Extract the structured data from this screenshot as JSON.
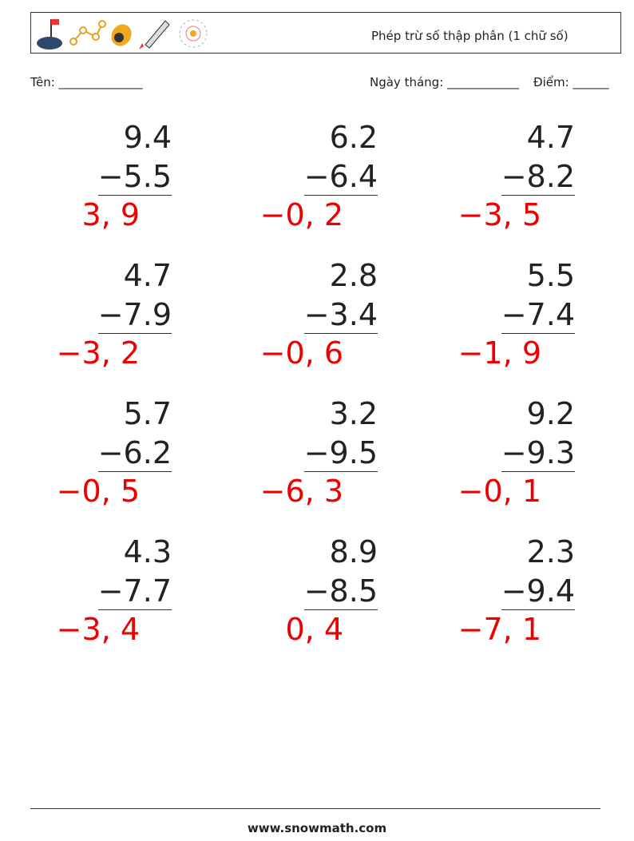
{
  "header": {
    "title": "Phép trừ số thập phân (1 chữ số)"
  },
  "fields": {
    "name": "Tên: ______________",
    "date": "Ngày tháng: ____________",
    "score": "Điểm: ______"
  },
  "problems": [
    {
      "top": "9.4",
      "bottom": "−5.5",
      "answer": "3, 9"
    },
    {
      "top": "6.2",
      "bottom": "−6.4",
      "answer": "−0, 2"
    },
    {
      "top": "4.7",
      "bottom": "−8.2",
      "answer": "−3, 5"
    },
    {
      "top": "4.7",
      "bottom": "−7.9",
      "answer": "−3, 2"
    },
    {
      "top": "2.8",
      "bottom": "−3.4",
      "answer": "−0, 6"
    },
    {
      "top": "5.5",
      "bottom": "−7.4",
      "answer": "−1, 9"
    },
    {
      "top": "5.7",
      "bottom": "−6.2",
      "answer": "−0, 5"
    },
    {
      "top": "3.2",
      "bottom": "−9.5",
      "answer": "−6, 3"
    },
    {
      "top": "9.2",
      "bottom": "−9.3",
      "answer": "−0, 1"
    },
    {
      "top": "4.3",
      "bottom": "−7.7",
      "answer": "−3, 4"
    },
    {
      "top": "8.9",
      "bottom": "−8.5",
      "answer": "0, 4"
    },
    {
      "top": "2.3",
      "bottom": "−9.4",
      "answer": "−7, 1"
    }
  ],
  "footer": "www.snowmath.com"
}
